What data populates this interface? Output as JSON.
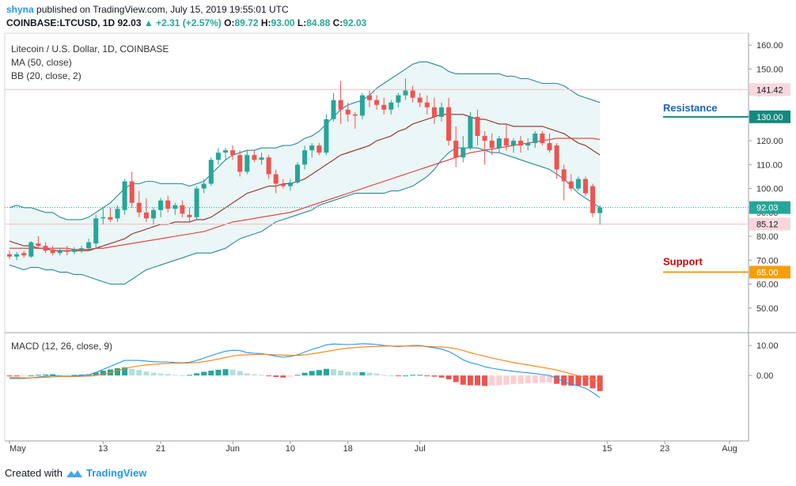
{
  "header": {
    "user": "shyna",
    "published": "published on TradingView.com, July 15, 2019 19:55:01 UTC",
    "symbol": "COINBASE:LTCUSD, 1D",
    "last": "92.03",
    "change": "+2.31 (+2.57%)",
    "o_label": "O:",
    "o": "89.72",
    "h_label": "H:",
    "h": "93.00",
    "l_label": "L:",
    "l": "84.88",
    "c_label": "C:",
    "c": "92.03"
  },
  "labels": {
    "title": "Litecoin / U.S. Dollar, 1D, COINBASE",
    "ma": "MA (50, close)",
    "bb": "BB (20, close, 2)",
    "macd": "MACD (12, 26, close, 9)",
    "resistance": "Resistance",
    "support": "Support"
  },
  "footer": {
    "created": "Created with",
    "brand": "TradingView"
  },
  "colors": {
    "up": "#26a69a",
    "down": "#ef5350",
    "bb": "#2a8a9a",
    "bbfill": "#e6f4f4",
    "ma": "#e53935",
    "bbmid": "#8b2a2a",
    "macd": "#2196f3",
    "signal": "#ff7f0e",
    "resistance": "#1565c0",
    "support": "#d50000",
    "supportBadge": "#f59e0b",
    "resBadge": "#13897f"
  },
  "chart_data": [
    {
      "type": "candlestick",
      "title": "Litecoin / U.S. Dollar, 1D, COINBASE",
      "ylim": [
        40,
        165
      ],
      "y_ticks": [
        50,
        60,
        70,
        80,
        90,
        100,
        110,
        120,
        130,
        140,
        150,
        160
      ],
      "y_tick_labels": [
        "50.00",
        "60.00",
        "70.00",
        "80.00",
        "90.00",
        "100.00",
        "110.00",
        "120.00",
        "130.00",
        "140.00",
        "150.00",
        "160.00"
      ],
      "x_ticks": [
        "May",
        "13",
        "21",
        "Jun",
        "10",
        "18",
        "Jul",
        "15",
        "23",
        "Aug"
      ],
      "price_badges": [
        {
          "label": "141.42",
          "value": 141.42,
          "style": "pink"
        },
        {
          "label": "130.00",
          "value": 130.0,
          "style": "resistance"
        },
        {
          "label": "92.03",
          "value": 92.03,
          "style": "teal"
        },
        {
          "label": "85.12",
          "value": 85.12,
          "style": "pink"
        },
        {
          "label": "65.00",
          "value": 65.0,
          "style": "support"
        }
      ],
      "candles": [
        {
          "o": 72.5,
          "h": 74.0,
          "l": 70.5,
          "c": 71.5
        },
        {
          "o": 71.5,
          "h": 73.5,
          "l": 70.0,
          "c": 72.5
        },
        {
          "o": 73.0,
          "h": 74.0,
          "l": 71.0,
          "c": 72.0
        },
        {
          "o": 71.5,
          "h": 78.0,
          "l": 71.0,
          "c": 77.5
        },
        {
          "o": 77.0,
          "h": 80.0,
          "l": 75.0,
          "c": 76.0
        },
        {
          "o": 76.0,
          "h": 77.5,
          "l": 73.0,
          "c": 74.0
        },
        {
          "o": 74.5,
          "h": 76.0,
          "l": 72.0,
          "c": 73.0
        },
        {
          "o": 73.0,
          "h": 75.0,
          "l": 72.0,
          "c": 74.0
        },
        {
          "o": 74.0,
          "h": 76.0,
          "l": 72.0,
          "c": 73.5
        },
        {
          "o": 73.5,
          "h": 75.5,
          "l": 72.5,
          "c": 74.5
        },
        {
          "o": 74.5,
          "h": 76.0,
          "l": 73.0,
          "c": 75.0
        },
        {
          "o": 75.0,
          "h": 79.0,
          "l": 74.0,
          "c": 77.5
        },
        {
          "o": 77.0,
          "h": 89.0,
          "l": 75.0,
          "c": 87.5
        },
        {
          "o": 87.5,
          "h": 92.0,
          "l": 85.0,
          "c": 88.0
        },
        {
          "o": 88.0,
          "h": 92.0,
          "l": 86.0,
          "c": 87.0
        },
        {
          "o": 87.5,
          "h": 93.0,
          "l": 86.0,
          "c": 91.5
        },
        {
          "o": 91.0,
          "h": 104.0,
          "l": 89.0,
          "c": 103.0
        },
        {
          "o": 103.0,
          "h": 107.0,
          "l": 92.0,
          "c": 94.0
        },
        {
          "o": 94.0,
          "h": 99.0,
          "l": 88.0,
          "c": 90.0
        },
        {
          "o": 90.0,
          "h": 96.0,
          "l": 86.0,
          "c": 87.5
        },
        {
          "o": 87.5,
          "h": 92.0,
          "l": 85.0,
          "c": 91.0
        },
        {
          "o": 91.0,
          "h": 96.0,
          "l": 88.0,
          "c": 95.0
        },
        {
          "o": 95.0,
          "h": 97.0,
          "l": 90.0,
          "c": 91.5
        },
        {
          "o": 91.5,
          "h": 94.0,
          "l": 89.0,
          "c": 93.0
        },
        {
          "o": 93.0,
          "h": 95.0,
          "l": 88.0,
          "c": 89.5
        },
        {
          "o": 89.0,
          "h": 92.0,
          "l": 86.0,
          "c": 88.0
        },
        {
          "o": 88.0,
          "h": 101.0,
          "l": 87.0,
          "c": 100.0
        },
        {
          "o": 100.0,
          "h": 104.0,
          "l": 98.0,
          "c": 102.0
        },
        {
          "o": 102.0,
          "h": 113.0,
          "l": 101.0,
          "c": 112.0
        },
        {
          "o": 112.0,
          "h": 117.0,
          "l": 110.0,
          "c": 115.0
        },
        {
          "o": 115.0,
          "h": 117.0,
          "l": 112.0,
          "c": 116.0
        },
        {
          "o": 116.0,
          "h": 118.0,
          "l": 112.0,
          "c": 114.0
        },
        {
          "o": 114.0,
          "h": 116.0,
          "l": 105.0,
          "c": 107.0
        },
        {
          "o": 107.0,
          "h": 116.0,
          "l": 106.0,
          "c": 114.0
        },
        {
          "o": 114.0,
          "h": 116.0,
          "l": 111.0,
          "c": 112.0
        },
        {
          "o": 112.0,
          "h": 115.0,
          "l": 110.0,
          "c": 113.0
        },
        {
          "o": 113.0,
          "h": 114.0,
          "l": 104.0,
          "c": 106.0
        },
        {
          "o": 106.0,
          "h": 108.0,
          "l": 98.0,
          "c": 102.0
        },
        {
          "o": 102.0,
          "h": 104.0,
          "l": 100.0,
          "c": 101.0
        },
        {
          "o": 101.0,
          "h": 104.0,
          "l": 99.0,
          "c": 102.5
        },
        {
          "o": 102.5,
          "h": 111.0,
          "l": 102.0,
          "c": 110.0
        },
        {
          "o": 110.0,
          "h": 118.0,
          "l": 108.0,
          "c": 116.0
        },
        {
          "o": 116.0,
          "h": 119.0,
          "l": 113.0,
          "c": 118.0
        },
        {
          "o": 118.0,
          "h": 119.0,
          "l": 114.0,
          "c": 115.0
        },
        {
          "o": 115.0,
          "h": 131.0,
          "l": 114.0,
          "c": 129.0
        },
        {
          "o": 129.0,
          "h": 140.0,
          "l": 128.0,
          "c": 137.0
        },
        {
          "o": 137.0,
          "h": 145.0,
          "l": 127.0,
          "c": 133.0
        },
        {
          "o": 133.0,
          "h": 136.0,
          "l": 128.0,
          "c": 131.0
        },
        {
          "o": 131.0,
          "h": 132.0,
          "l": 125.0,
          "c": 130.5
        },
        {
          "o": 130.5,
          "h": 140.0,
          "l": 129.0,
          "c": 139.0
        },
        {
          "o": 139.0,
          "h": 141.0,
          "l": 134.0,
          "c": 137.0
        },
        {
          "o": 137.0,
          "h": 139.0,
          "l": 133.0,
          "c": 135.0
        },
        {
          "o": 135.0,
          "h": 138.0,
          "l": 131.0,
          "c": 133.0
        },
        {
          "o": 133.0,
          "h": 137.0,
          "l": 131.0,
          "c": 136.0
        },
        {
          "o": 136.0,
          "h": 140.0,
          "l": 134.0,
          "c": 139.0
        },
        {
          "o": 139.0,
          "h": 146.0,
          "l": 137.0,
          "c": 141.0
        },
        {
          "o": 141.0,
          "h": 143.0,
          "l": 136.0,
          "c": 138.0
        },
        {
          "o": 138.0,
          "h": 140.0,
          "l": 134.0,
          "c": 136.0
        },
        {
          "o": 136.0,
          "h": 139.0,
          "l": 131.0,
          "c": 134.0
        },
        {
          "o": 134.0,
          "h": 138.0,
          "l": 127.0,
          "c": 130.0
        },
        {
          "o": 130.0,
          "h": 136.0,
          "l": 128.0,
          "c": 134.0
        },
        {
          "o": 134.0,
          "h": 138.0,
          "l": 118.0,
          "c": 120.0
        },
        {
          "o": 120.0,
          "h": 126.0,
          "l": 109.0,
          "c": 113.0
        },
        {
          "o": 113.0,
          "h": 122.0,
          "l": 111.0,
          "c": 117.0
        },
        {
          "o": 117.0,
          "h": 132.0,
          "l": 116.0,
          "c": 130.0
        },
        {
          "o": 130.0,
          "h": 133.0,
          "l": 118.0,
          "c": 122.0
        },
        {
          "o": 122.0,
          "h": 124.0,
          "l": 110.0,
          "c": 120.0
        },
        {
          "o": 120.0,
          "h": 123.0,
          "l": 114.0,
          "c": 117.0
        },
        {
          "o": 117.0,
          "h": 122.0,
          "l": 115.0,
          "c": 121.0
        },
        {
          "o": 121.0,
          "h": 127.0,
          "l": 116.0,
          "c": 118.0
        },
        {
          "o": 118.0,
          "h": 121.0,
          "l": 115.0,
          "c": 120.0
        },
        {
          "o": 120.0,
          "h": 122.0,
          "l": 115.0,
          "c": 118.0
        },
        {
          "o": 118.0,
          "h": 121.0,
          "l": 116.0,
          "c": 119.0
        },
        {
          "o": 119.0,
          "h": 124.0,
          "l": 117.0,
          "c": 123.0
        },
        {
          "o": 123.0,
          "h": 124.0,
          "l": 118.0,
          "c": 119.0
        },
        {
          "o": 119.0,
          "h": 123.0,
          "l": 115.0,
          "c": 116.0
        },
        {
          "o": 118.0,
          "h": 119.0,
          "l": 104.0,
          "c": 108.0
        },
        {
          "o": 108.0,
          "h": 110.0,
          "l": 95.0,
          "c": 103.0
        },
        {
          "o": 103.0,
          "h": 106.0,
          "l": 99.0,
          "c": 100.0
        },
        {
          "o": 100.0,
          "h": 105.0,
          "l": 99.0,
          "c": 104.0
        },
        {
          "o": 104.0,
          "h": 105.0,
          "l": 97.0,
          "c": 98.0
        },
        {
          "o": 101.0,
          "h": 102.0,
          "l": 88.0,
          "c": 89.7
        },
        {
          "o": 89.72,
          "h": 93.0,
          "l": 84.88,
          "c": 92.03
        }
      ],
      "bb_upper": [
        92,
        93,
        92,
        92,
        91,
        90,
        90,
        88,
        87,
        87,
        87,
        88,
        90,
        92,
        94,
        97,
        100,
        102,
        102,
        103,
        103,
        102,
        102,
        102,
        102,
        101,
        102,
        103,
        106,
        109,
        112,
        114,
        115,
        116,
        116,
        117,
        117,
        117,
        118,
        118,
        119,
        121,
        122,
        124,
        127,
        130,
        133,
        135,
        136,
        137,
        139,
        142,
        144,
        146,
        148,
        150,
        152,
        153,
        153,
        152,
        151,
        149,
        148,
        148,
        148,
        148,
        148,
        148,
        148,
        147,
        147,
        146,
        146,
        145,
        144,
        144,
        144,
        143,
        141,
        139,
        138,
        137,
        136
      ],
      "bb_lower": [
        68,
        67,
        66,
        67,
        67,
        66,
        66,
        65,
        65,
        64,
        64,
        63,
        62,
        61,
        60,
        60,
        60,
        62,
        64,
        66,
        67,
        68,
        69,
        70,
        71,
        72,
        73,
        73,
        73,
        74,
        75,
        77,
        79,
        80,
        81,
        82,
        84,
        86,
        87,
        88,
        89,
        90,
        91,
        93,
        94,
        95,
        96,
        97,
        98,
        98,
        98,
        98,
        98,
        99,
        99,
        100,
        101,
        103,
        105,
        108,
        112,
        115,
        117,
        117,
        117,
        117,
        116,
        115,
        115,
        114,
        113,
        112,
        111,
        110,
        109,
        108,
        106,
        104,
        101,
        98,
        96,
        94,
        92
      ],
      "bb_mid": [
        78,
        77,
        76,
        76,
        75,
        75,
        74,
        74,
        74,
        74,
        74,
        74,
        75,
        76,
        77,
        78,
        79,
        81,
        82,
        83,
        84,
        85,
        85,
        86,
        86,
        86,
        87,
        87,
        88,
        90,
        92,
        94,
        96,
        98,
        99,
        100,
        101,
        101,
        102,
        102,
        103,
        104,
        106,
        108,
        110,
        112,
        114,
        115,
        116,
        117,
        118,
        120,
        121,
        122,
        124,
        125,
        127,
        128,
        129,
        130,
        131,
        131,
        131,
        131,
        130,
        129,
        129,
        128,
        127,
        127,
        126,
        126,
        126,
        126,
        126,
        125,
        124,
        123,
        121,
        119,
        118,
        116,
        114
      ],
      "ma50": [
        75,
        75,
        75,
        75,
        75,
        75,
        75,
        75,
        75,
        74.5,
        74.5,
        74.5,
        75,
        75,
        75.5,
        76,
        76.5,
        77,
        77.5,
        78,
        78.5,
        79,
        79.5,
        80,
        80.5,
        81,
        81.5,
        82,
        83,
        84,
        85,
        86,
        86.5,
        87,
        87.5,
        88,
        88.5,
        89,
        89.5,
        90,
        91,
        92,
        93,
        94,
        95,
        96,
        97,
        98,
        99,
        100,
        101,
        102,
        103,
        104,
        105,
        106,
        107,
        108,
        109,
        110,
        111,
        112,
        113,
        114,
        115,
        115.5,
        116,
        116.5,
        117,
        117.5,
        118,
        118.5,
        119,
        119.5,
        120,
        120.5,
        121,
        121,
        121,
        121,
        121,
        121,
        120.5
      ]
    },
    {
      "type": "macd",
      "title": "MACD (12, 26, close, 9)",
      "ylim": [
        -20,
        14
      ],
      "y_ticks": [
        0,
        10
      ],
      "y_tick_labels": [
        "0.00",
        "10.00"
      ],
      "macd": [
        -1,
        -1,
        -1,
        -0.8,
        -0.5,
        -0.3,
        -0.1,
        -0.2,
        -0.3,
        -0.2,
        0,
        0.2,
        1,
        2,
        3,
        4,
        5,
        5,
        5,
        4.8,
        4.6,
        4.5,
        4.5,
        4.3,
        4.2,
        4.4,
        5,
        5.8,
        6.6,
        7.4,
        8.1,
        8.4,
        8.3,
        7.6,
        7.4,
        7.3,
        6.9,
        6.4,
        6.1,
        6.3,
        6.9,
        7.8,
        8.7,
        9.4,
        10.2,
        10.5,
        10.4,
        10.3,
        10.4,
        10.6,
        10.5,
        10.3,
        10,
        9.8,
        9.6,
        9.8,
        10,
        10,
        9.6,
        9.2,
        8.8,
        8,
        6.7,
        5.2,
        4.3,
        3.7,
        2.9,
        2.4,
        2,
        1.7,
        1.4,
        1.1,
        0.9,
        0.6,
        0.3,
        0,
        -1,
        -2.1,
        -2.9,
        -3.5,
        -4.2,
        -5.7,
        -7.4
      ],
      "signal": [
        -0.7,
        -0.7,
        -0.8,
        -0.8,
        -0.7,
        -0.6,
        -0.5,
        -0.4,
        -0.4,
        -0.4,
        -0.3,
        -0.2,
        0,
        0.4,
        1,
        1.6,
        2.3,
        2.8,
        3.2,
        3.5,
        3.7,
        3.9,
        4,
        4.1,
        4.1,
        4.2,
        4.3,
        4.6,
        5,
        5.5,
        6,
        6.5,
        6.8,
        6.9,
        7,
        7.1,
        7,
        6.9,
        6.8,
        6.7,
        6.7,
        6.9,
        7.2,
        7.6,
        8,
        8.4,
        8.8,
        9.1,
        9.3,
        9.5,
        9.6,
        9.7,
        9.8,
        9.8,
        9.8,
        9.8,
        9.8,
        9.8,
        9.7,
        9.6,
        9.5,
        9.3,
        8.9,
        8.3,
        7.6,
        7,
        6.4,
        5.8,
        5.3,
        4.8,
        4.3,
        3.9,
        3.5,
        3.1,
        2.7,
        2.3,
        1.8,
        1.2,
        0.5,
        -0.1,
        -0.7,
        -1.4,
        -2.2
      ]
    }
  ]
}
